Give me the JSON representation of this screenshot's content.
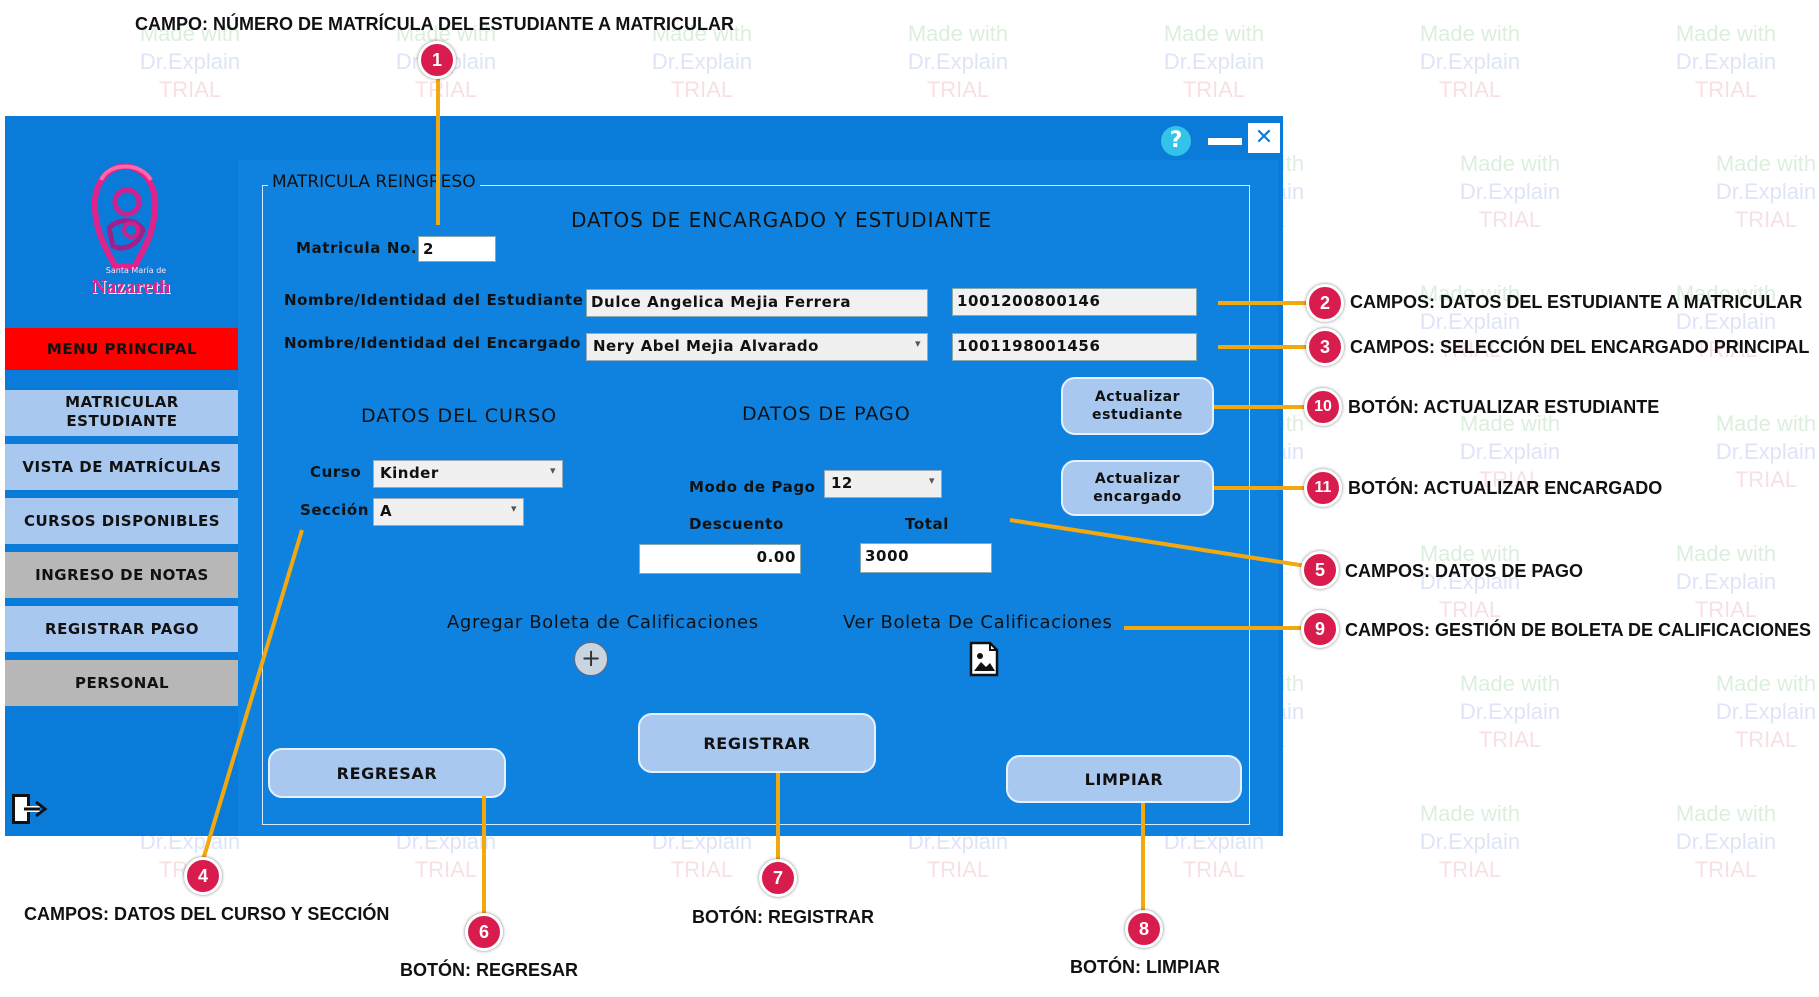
{
  "window": {
    "panel_legend": "MATRICULA REINGRESO",
    "help_label": "?",
    "minimize_label": "—",
    "close_label": "✕"
  },
  "logo": {
    "text": "Nazareth",
    "small_text": "Santa María de"
  },
  "sidebar": {
    "items": [
      {
        "label": "MENU PRINCIPAL"
      },
      {
        "label": "MATRICULAR\nESTUDIANTE"
      },
      {
        "label": "VISTA DE MATRÍCULAS"
      },
      {
        "label": "CURSOS DISPONIBLES"
      },
      {
        "label": "INGRESO DE NOTAS"
      },
      {
        "label": "REGISTRAR PAGO"
      },
      {
        "label": "PERSONAL"
      }
    ],
    "exit_icon": "exit-icon"
  },
  "form": {
    "title": "DATOS DE ENCARGADO Y ESTUDIANTE",
    "matricula_label": "Matricula No.",
    "matricula_value": "2",
    "student_label": "Nombre/Identidad del Estudiante",
    "student_name": "Dulce Angelica Mejia Ferrera",
    "student_id": "1001200800146",
    "guardian_label": "Nombre/Identidad del Encargado",
    "guardian_name": "Nery Abel Mejia Alvarado",
    "guardian_id": "1001198001456",
    "course_section_title": "DATOS DEL CURSO",
    "curso_label": "Curso",
    "curso_value": "Kinder",
    "seccion_label": "Sección",
    "seccion_value": "A",
    "payment_title": "DATOS DE PAGO",
    "modo_pago_label": "Modo de Pago",
    "modo_pago_value": "12",
    "descuento_label": "Descuento",
    "descuento_value": "0.00",
    "total_label": "Total",
    "total_value": "3000",
    "agregar_boleta_label": "Agregar Boleta de Calificaciones",
    "ver_boleta_label": "Ver Boleta De Calificaciones",
    "actualizar_estudiante": "Actualizar\nestudiante",
    "actualizar_encargado": "Actualizar\nencargado",
    "regresar": "REGRESAR",
    "registrar": "REGISTRAR",
    "limpiar": "LIMPIAR"
  },
  "callouts": [
    {
      "n": "1",
      "text": "CAMPO: NÚMERO DE MATRÍCULA DEL ESTUDIANTE A MATRICULAR"
    },
    {
      "n": "2",
      "text": "CAMPOS: DATOS DEL ESTUDIANTE A MATRICULAR"
    },
    {
      "n": "3",
      "text": "CAMPOS: SELECCIÓN DEL ENCARGADO PRINCIPAL"
    },
    {
      "n": "4",
      "text": "CAMPOS: DATOS DEL CURSO Y SECCIÓN"
    },
    {
      "n": "5",
      "text": "CAMPOS: DATOS DE PAGO"
    },
    {
      "n": "6",
      "text": "BOTÓN: REGRESAR"
    },
    {
      "n": "7",
      "text": "BOTÓN: REGISTRAR"
    },
    {
      "n": "8",
      "text": "BOTÓN: LIMPIAR"
    },
    {
      "n": "9",
      "text": "CAMPOS: GESTIÓN DE BOLETA DE CALIFICACIONES"
    },
    {
      "n": "10",
      "text": "BOTÓN: ACTUALIZAR ESTUDIANTE"
    },
    {
      "n": "11",
      "text": "BOTÓN: ACTUALIZAR ENCARGADO"
    }
  ],
  "watermark": {
    "line1": "Made with",
    "line2": "Dr.Explain",
    "line3": "TRIAL"
  },
  "colors": {
    "window_blue": "#0a7bd8",
    "menu_red": "#ff0000",
    "button_light": "#a9c8f0",
    "callout_pink": "#d81c4d",
    "leader_orange": "#f2a80f"
  }
}
